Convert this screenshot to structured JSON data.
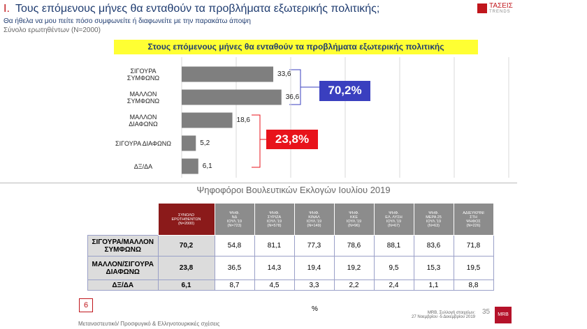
{
  "header": {
    "number": "I.",
    "title": "Τους επόμενους μήνες θα ενταθούν τα προβλήματα εξωτερικής πολιτικής;",
    "subtitle": "Θα ήθελα να μου πείτε πόσο συμφωνείτε ή διαφωνείτε με την παρακάτω άποψη",
    "base": "Σύνολο ερωτηθέντων (N=2000)",
    "logo": "ΤΑΣΕΙΣ",
    "logo_sub": "TRENDS"
  },
  "chart_data": {
    "type": "hbar",
    "title": "Στους επόμενους μήνες θα ενταθούν τα προβλήματα εξωτερικής πολιτικής",
    "categories": [
      "ΣΙΓΟΥΡΑ\nΣΥΜΦΩΝΩ",
      "ΜΑΛΛΟΝ\nΣΥΜΦΩΝΩ",
      "ΜΑΛΛΟΝ\nΔΙΑΦΩΝΩ",
      "ΣΙΓΟΥΡΑ ΔΙΑΦΩΝΩ",
      "ΔΞ/ΔΑ"
    ],
    "values": [
      33.6,
      36.6,
      18.6,
      5.2,
      6.1
    ],
    "value_labels": [
      "33,6",
      "36,6",
      "18,6",
      "5,2",
      "6,1"
    ],
    "color": "#7f7f7f",
    "xlim": [
      0,
      120
    ],
    "xticks": [
      0,
      20,
      40,
      60,
      80,
      100,
      120
    ],
    "grid": true,
    "annotations": [
      {
        "text": "70,2%",
        "color": "#3a3fbf"
      },
      {
        "text": "23,8%",
        "color": "#e8131b"
      }
    ]
  },
  "table": {
    "caption": "Ψηφοφόροι Βουλευτικών Εκλογών Ιουλίου 2019",
    "header": [
      "ΣΥΝΟΛΟ\nΕΡΩΤΗΘΕΝΤΩΝ\n(N=2000)",
      "ΨΗΦ.\nΝΔ\nΙΟΥΛ.'19\n(N=723)",
      "ΨΗΦ.\nΣΥΡΙΖΑ\nΙΟΥΛ.'19\n(N=578)",
      "ΨΗΦ.\nΚΙΝΑΛ\nΙΟΥΛ.'19\n(N=149)",
      "ΨΗΦ.\nΚΚΕ\nΙΟΥΛ.'19\n(N=96)",
      "ΨΗΦ.\nΕΛ. ΛΥΣΗ\nΙΟΥΛ.'19\n(N=67)",
      "ΨΗΦ.\nΜΕΡΑ 25\nΙΟΥΛ.'19\n(N=63)",
      "ΑΔΙΕΥΚΡΙΝΙ\nΣΤΗ\nΨΗΦΟΣ\n(N=226)"
    ],
    "rows": [
      {
        "label": "ΣΙΓΟΥΡΑ/ΜΑΛΛΟΝ\nΣΥΜΦΩΝΩ",
        "cells": [
          "70,2",
          "54,8",
          "81,1",
          "77,3",
          "78,6",
          "88,1",
          "83,6",
          "71,8"
        ]
      },
      {
        "label": "ΜΑΛΛΟΝ/ΣΙΓΟΥΡΑ\nΔΙΑΦΩΝΩ",
        "cells": [
          "23,8",
          "36,5",
          "14,3",
          "19,4",
          "19,2",
          "9,5",
          "15,3",
          "19,5"
        ]
      },
      {
        "label": "ΔΞ/ΔΑ",
        "cells": [
          "6,1",
          "8,7",
          "4,5",
          "3,3",
          "2,2",
          "2,4",
          "1,1",
          "8,8"
        ]
      }
    ],
    "unit": "%"
  },
  "footer": {
    "slide": "6",
    "topic": "Μεταναστευτικό/ Προσφυγικό & Ελληνοτουρκικές σχέσεις",
    "source": "MRB, Συλλογή στοιχείων:\n27 Νοεμβρίου -5 Δεκεμβρίου 2019",
    "page": "35",
    "brand": "MRB"
  }
}
